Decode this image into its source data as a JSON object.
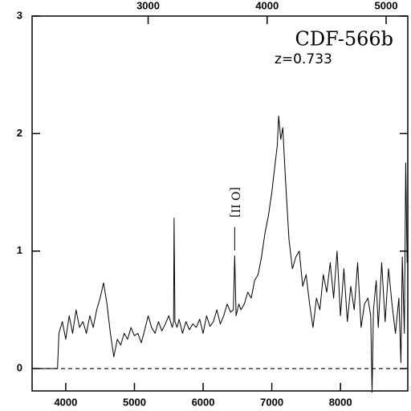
{
  "chart_data": {
    "type": "line",
    "title": "CDF-566b",
    "subtitle": "z=0.733",
    "x": [
      3500,
      3880,
      3900,
      3950,
      4000,
      4050,
      4100,
      4150,
      4200,
      4250,
      4300,
      4350,
      4400,
      4450,
      4500,
      4550,
      4600,
      4650,
      4700,
      4750,
      4800,
      4850,
      4900,
      4950,
      5000,
      5050,
      5100,
      5150,
      5200,
      5250,
      5300,
      5350,
      5400,
      5450,
      5500,
      5550,
      5570,
      5577,
      5590,
      5620,
      5650,
      5700,
      5750,
      5800,
      5850,
      5900,
      5950,
      6000,
      6050,
      6100,
      6150,
      6200,
      6250,
      6300,
      6350,
      6400,
      6440,
      6460,
      6480,
      6520,
      6550,
      6600,
      6650,
      6700,
      6750,
      6800,
      6850,
      6900,
      6950,
      7000,
      7050,
      7080,
      7100,
      7130,
      7160,
      7200,
      7250,
      7300,
      7350,
      7400,
      7450,
      7500,
      7550,
      7600,
      7650,
      7700,
      7750,
      7800,
      7850,
      7900,
      7950,
      8000,
      8050,
      8100,
      8150,
      8200,
      8250,
      8300,
      8350,
      8400,
      8440,
      8460,
      8480,
      8520,
      8550,
      8600,
      8650,
      8700,
      8750,
      8800,
      8850,
      8880,
      8900,
      8930,
      8950,
      8970
    ],
    "series": [
      {
        "color": "#000000",
        "values": [
          0,
          0,
          0.3,
          0.4,
          0.25,
          0.45,
          0.3,
          0.5,
          0.35,
          0.4,
          0.3,
          0.45,
          0.35,
          0.5,
          0.6,
          0.73,
          0.55,
          0.3,
          0.1,
          0.25,
          0.2,
          0.3,
          0.25,
          0.35,
          0.28,
          0.3,
          0.22,
          0.33,
          0.45,
          0.35,
          0.3,
          0.4,
          0.32,
          0.38,
          0.45,
          0.35,
          0.4,
          1.28,
          0.4,
          0.35,
          0.42,
          0.3,
          0.4,
          0.33,
          0.38,
          0.35,
          0.42,
          0.3,
          0.45,
          0.36,
          0.4,
          0.5,
          0.38,
          0.45,
          0.55,
          0.48,
          0.5,
          0.96,
          0.45,
          0.55,
          0.5,
          0.55,
          0.65,
          0.6,
          0.75,
          0.8,
          0.95,
          1.15,
          1.3,
          1.5,
          1.75,
          1.9,
          2.15,
          1.95,
          2.05,
          1.6,
          1.1,
          0.85,
          0.95,
          1.0,
          0.7,
          0.8,
          0.55,
          0.35,
          0.6,
          0.5,
          0.8,
          0.65,
          0.9,
          0.6,
          1.0,
          0.45,
          0.85,
          0.4,
          0.7,
          0.5,
          0.9,
          0.35,
          0.55,
          0.6,
          0.45,
          -0.2,
          0.5,
          0.75,
          0.35,
          0.9,
          0.4,
          0.85,
          0.55,
          0.3,
          0.6,
          0.05,
          0.95,
          0.3,
          1.75,
          0.9
        ]
      }
    ],
    "xlim": [
      3510,
      8980
    ],
    "xticks": [
      4000,
      5000,
      6000,
      7000,
      8000
    ],
    "x2lim": [
      2025,
      5182
    ],
    "x2ticks": [
      3000,
      4000,
      5000
    ],
    "ylim": [
      -0.19,
      3
    ],
    "yticks": [
      0,
      1,
      2,
      3
    ],
    "zero_line": true,
    "annotation": {
      "text": "[O II]",
      "x": 6460
    }
  }
}
